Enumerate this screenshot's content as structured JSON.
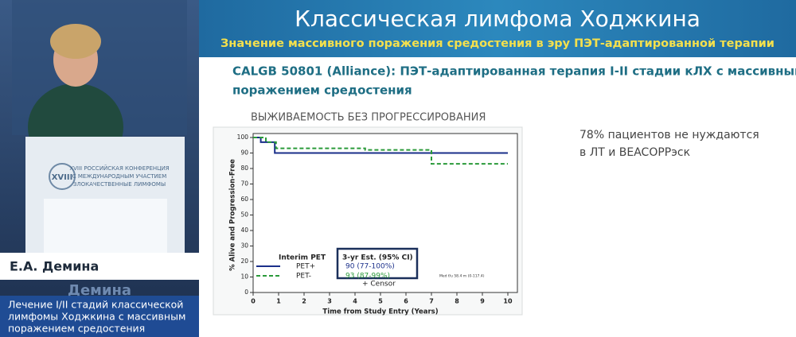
{
  "podium": {
    "logo": "XVIII",
    "lines": [
      "XVIII РОССИЙСКАЯ КОНФЕРЕНЦИЯ",
      "С МЕЖДУНАРОДНЫМ УЧАСТИЕМ",
      "ЗЛОКАЧЕСТВЕННЫЕ ЛИМФОМЫ"
    ]
  },
  "speaker": {
    "name": "Е.А. Демина",
    "name_behind": "Демина",
    "caption": [
      "Лечение I/II стадий классической",
      "лимфомы Ходжкина с массивным",
      "поражением средостения"
    ]
  },
  "slide": {
    "title": "Классическая лимфома Ходжкина",
    "subtitle": "Значение массивного поражения средостения в эру ПЭТ-адаптированной терапии",
    "heading": [
      "CALGB 50801 (Alliance): ПЭТ-адаптированная терапия I-II стадии кЛХ с массивным",
      "поражением средостения"
    ],
    "note": [
      "78% пациентов не нуждаются",
      "в ЛТ и BEACOPPэск"
    ]
  },
  "chart_data": {
    "type": "line",
    "title": "ВЫЖИВАЕМОСТЬ БЕЗ ПРОГРЕССИРОВАНИЯ",
    "xlabel": "Time from Study Entry (Years)",
    "ylabel": "% Alive and Progression-Free",
    "xlim": [
      0,
      10
    ],
    "ylim": [
      0,
      100
    ],
    "xticks": [
      0,
      1,
      2,
      3,
      4,
      5,
      6,
      7,
      8,
      9,
      10
    ],
    "yticks": [
      0,
      10,
      20,
      30,
      40,
      50,
      60,
      70,
      80,
      90,
      100
    ],
    "legend_title": "Interim PET",
    "estimate_title": "3-yr Est. (95% CI)",
    "censor_label": "+ Censor",
    "footnote": "Med f/u 58.4 m (0-117.4)",
    "series": [
      {
        "name": "PET+",
        "color": "#1a2f8a",
        "dashed": false,
        "estimate": "90 (77-100%)",
        "x": [
          0,
          0.3,
          0.3,
          0.85,
          0.85,
          10
        ],
        "values": [
          100,
          100,
          97,
          97,
          90,
          90
        ]
      },
      {
        "name": "PET-",
        "color": "#2a9a3a",
        "dashed": true,
        "estimate": "93 (87-99%)",
        "x": [
          0,
          0.5,
          0.5,
          0.9,
          0.9,
          4.4,
          4.4,
          7,
          7,
          10
        ],
        "values": [
          100,
          100,
          97,
          97,
          93,
          93,
          92,
          92,
          83,
          83
        ]
      }
    ]
  }
}
